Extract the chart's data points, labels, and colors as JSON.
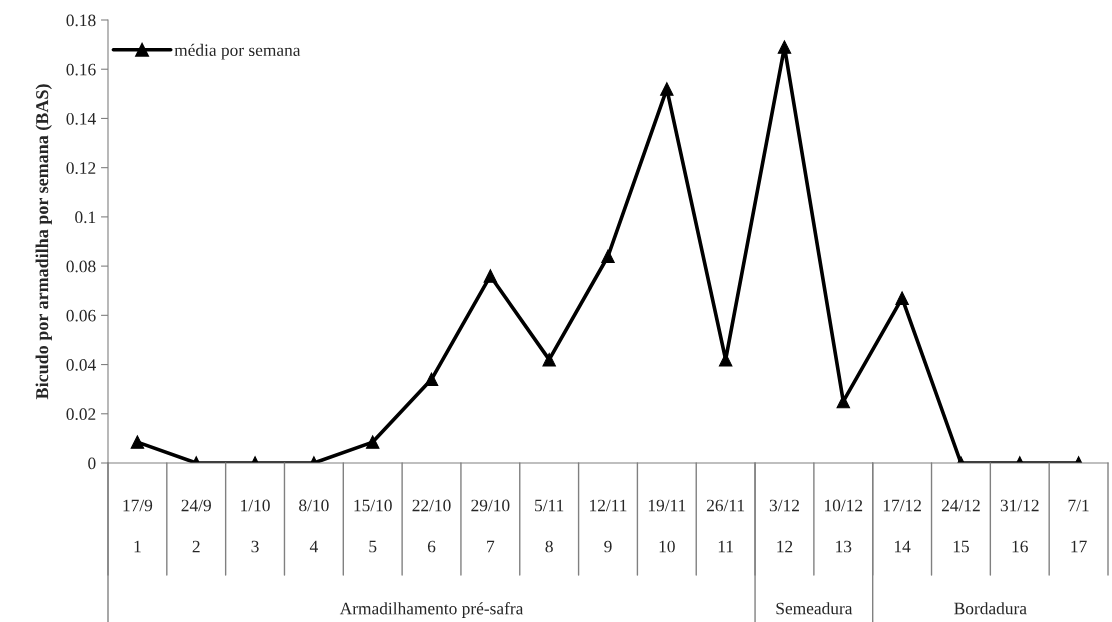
{
  "chart_data": {
    "type": "line",
    "ylabel": "Bicudo por armadilha por semana (BAS)",
    "categories": [
      "17/9\n1",
      "24/9\n2",
      "1/10\n3",
      "8/10\n4",
      "15/10\n5",
      "22/10\n6",
      "29/10\n7",
      "5/11\n8",
      "12/11\n9",
      "19/11\n10",
      "26/11\n11",
      "3/12\n12",
      "10/12\n13",
      "17/12\n14",
      "24/12\n15",
      "31/12\n16",
      "7/1\n17"
    ],
    "series": [
      {
        "name": "média por semana",
        "color": "#000000",
        "values": [
          0.0085,
          0,
          0,
          0,
          0.0085,
          0.034,
          0.076,
          0.042,
          0.084,
          0.152,
          0.042,
          0.169,
          0.025,
          0.067,
          0,
          0,
          0
        ]
      }
    ],
    "annotations": [
      "Armadilhamento pré-safra",
      "Semeadura",
      "Bordadura"
    ],
    "ylim": [
      0,
      0.18
    ],
    "yticks": [
      0,
      0.02,
      0.04,
      0.06,
      0.08,
      0.1,
      0.12,
      0.14,
      0.16,
      0.18
    ],
    "grid": false,
    "legend": "top left",
    "marker": "triangle",
    "line_style": "solid"
  }
}
